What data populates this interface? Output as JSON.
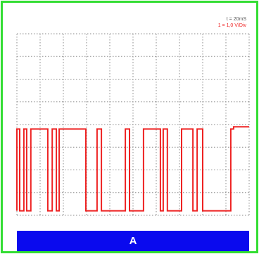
{
  "scope": {
    "time_div_label": "t = 20mS",
    "volt_div_label": "1 = 1,0 V/Div",
    "channel_label": "A"
  },
  "colors": {
    "frame": "#33dd33",
    "trace": "#ee2222",
    "channel_bar": "#0a0aee",
    "grid": "#8a8a8a"
  },
  "chart_data": {
    "type": "line",
    "title": "",
    "xlabel": "",
    "ylabel": "",
    "grid": true,
    "xlim": [
      0,
      10
    ],
    "ylim": [
      0,
      8
    ],
    "series": [
      {
        "color": "#ee2222",
        "x": [
          0,
          0,
          0.12,
          0.12,
          0.3,
          0.3,
          0.42,
          0.42,
          0.6,
          0.6,
          1.33,
          1.33,
          1.52,
          1.52,
          1.7,
          1.7,
          1.82,
          1.82,
          2.97,
          2.97,
          3.45,
          3.45,
          3.64,
          3.64,
          4.67,
          4.67,
          4.85,
          4.85,
          5.45,
          5.45,
          6.18,
          6.18,
          6.3,
          6.3,
          6.48,
          6.48,
          7.09,
          7.09,
          7.58,
          7.58,
          7.76,
          7.76,
          8.0,
          8.0,
          9.21,
          9.21,
          9.33,
          9.33,
          10.0
        ],
        "y": [
          0.2,
          3.8,
          3.8,
          0.2,
          0.2,
          3.8,
          3.8,
          0.2,
          0.2,
          3.8,
          3.8,
          0.2,
          0.2,
          3.8,
          3.8,
          0.2,
          0.2,
          3.8,
          3.8,
          0.2,
          0.2,
          3.8,
          3.8,
          0.2,
          0.2,
          3.8,
          3.8,
          0.2,
          0.2,
          3.8,
          3.8,
          0.2,
          0.2,
          3.8,
          3.8,
          0.2,
          0.2,
          3.8,
          3.8,
          0.2,
          0.2,
          3.8,
          3.8,
          0.2,
          0.2,
          3.8,
          3.8,
          3.9,
          3.9
        ]
      }
    ]
  }
}
